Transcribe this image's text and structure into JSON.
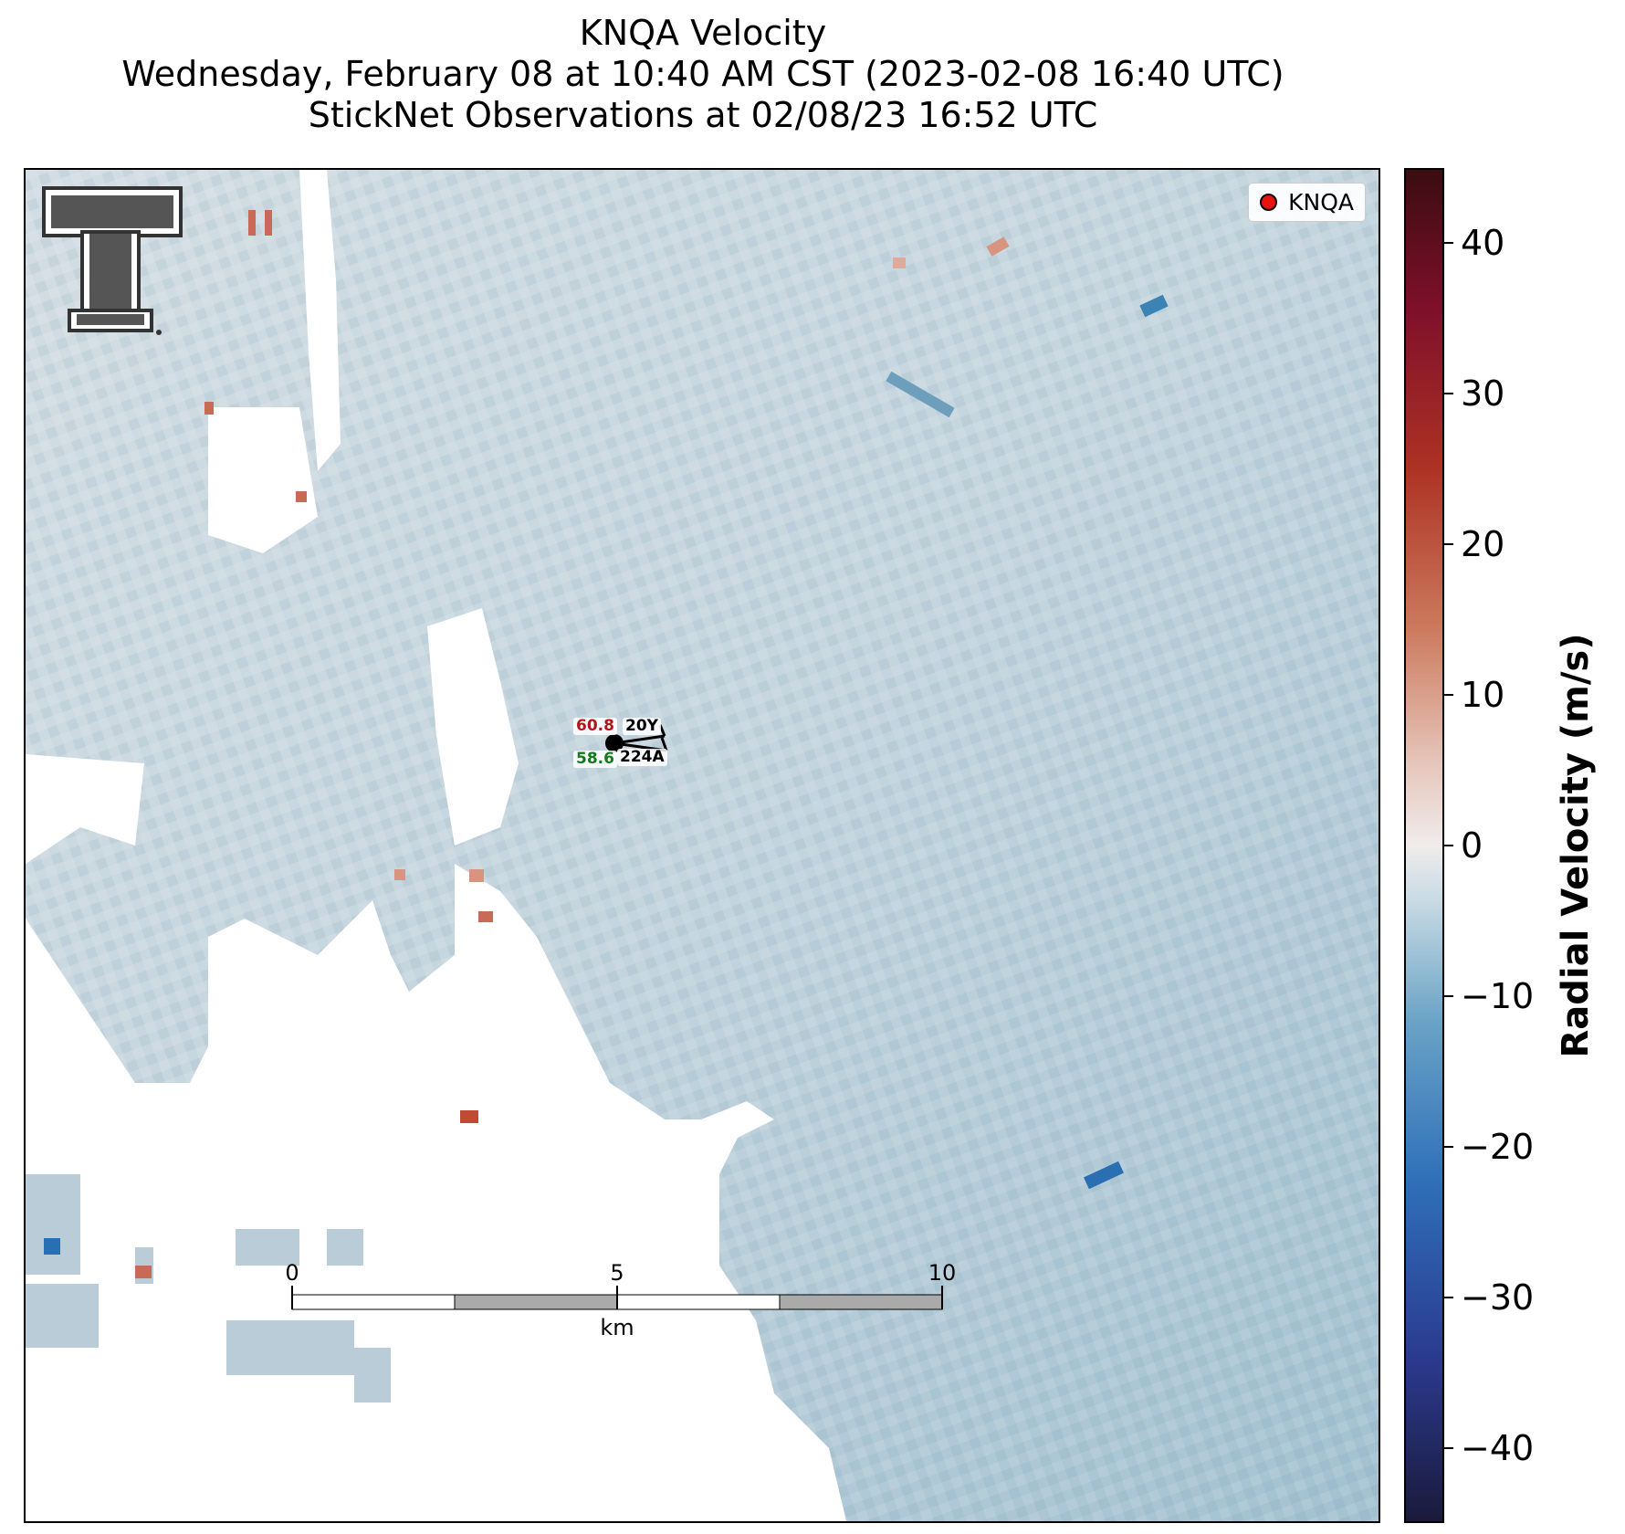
{
  "title": {
    "line1": "KNQA Velocity",
    "line2": "Wednesday, February 08 at 10:40 AM CST (2023-02-08 16:40 UTC)",
    "line3": "StickNet Observations at 02/08/23 16:52 UTC"
  },
  "legend": {
    "label": "KNQA"
  },
  "station": {
    "temperature": "60.8",
    "dewpoint": "58.6",
    "label_top": "20Y",
    "label_bottom": "224A",
    "temperature_color": "#b0161b",
    "dewpoint_color": "#137a1c"
  },
  "colorbar": {
    "label": "Radial Velocity (m/s)",
    "ticks": [
      "40",
      "30",
      "20",
      "10",
      "0",
      "−10",
      "−20",
      "−30",
      "−40"
    ],
    "range": [
      -45,
      45
    ]
  },
  "scalebar": {
    "ticks": [
      "0",
      "5",
      "10"
    ],
    "unit": "km"
  },
  "logo": {
    "icon": "texas-tech-double-t-logo"
  }
}
